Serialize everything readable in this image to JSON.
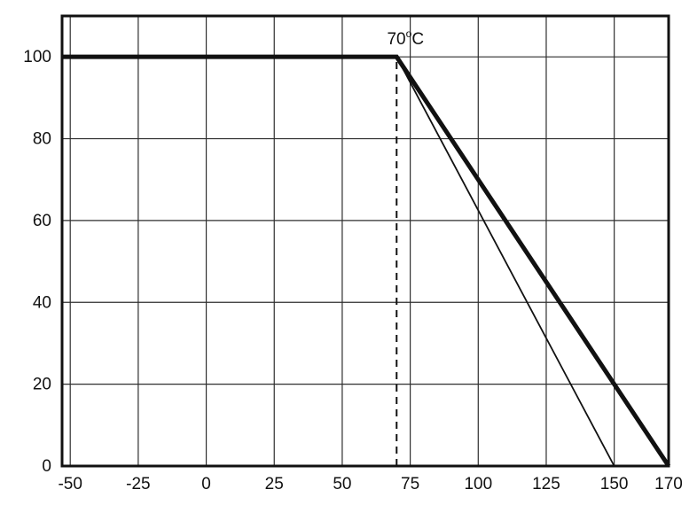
{
  "page": {
    "background": "#ffffff",
    "ink_color": "#111111",
    "grid_color": "#2e2e2e"
  },
  "chart_data": {
    "type": "line",
    "title": "",
    "xlabel": "",
    "ylabel": "",
    "xlim": [
      -53,
      170
    ],
    "ylim": [
      0,
      110
    ],
    "x_ticks": [
      -50,
      -25,
      0,
      25,
      50,
      75,
      100,
      125,
      150,
      170
    ],
    "x_tick_labels": [
      "-50",
      "-25",
      "0",
      "25",
      "50",
      "75",
      "100",
      "125",
      "150",
      "170"
    ],
    "y_ticks": [
      0,
      20,
      40,
      60,
      80,
      100
    ],
    "y_tick_labels": [
      "0",
      "20",
      "40",
      "60",
      "80",
      "100"
    ],
    "grid": true,
    "legend": "none",
    "series": [
      {
        "name": "derating-curve-thick",
        "x": [
          -53,
          70,
          170
        ],
        "y": [
          100,
          100,
          0
        ],
        "stroke_width": 5
      },
      {
        "name": "derating-curve-thin",
        "x": [
          70,
          150
        ],
        "y": [
          100,
          0
        ],
        "stroke_width": 1.8
      }
    ],
    "reference_line": {
      "x": 70,
      "y_from": 0,
      "y_to": 100,
      "style": "dashed",
      "stroke_width": 2
    },
    "annotation": {
      "value": "70",
      "degree": "o",
      "unit": "C",
      "x": 70,
      "y": 100
    }
  }
}
